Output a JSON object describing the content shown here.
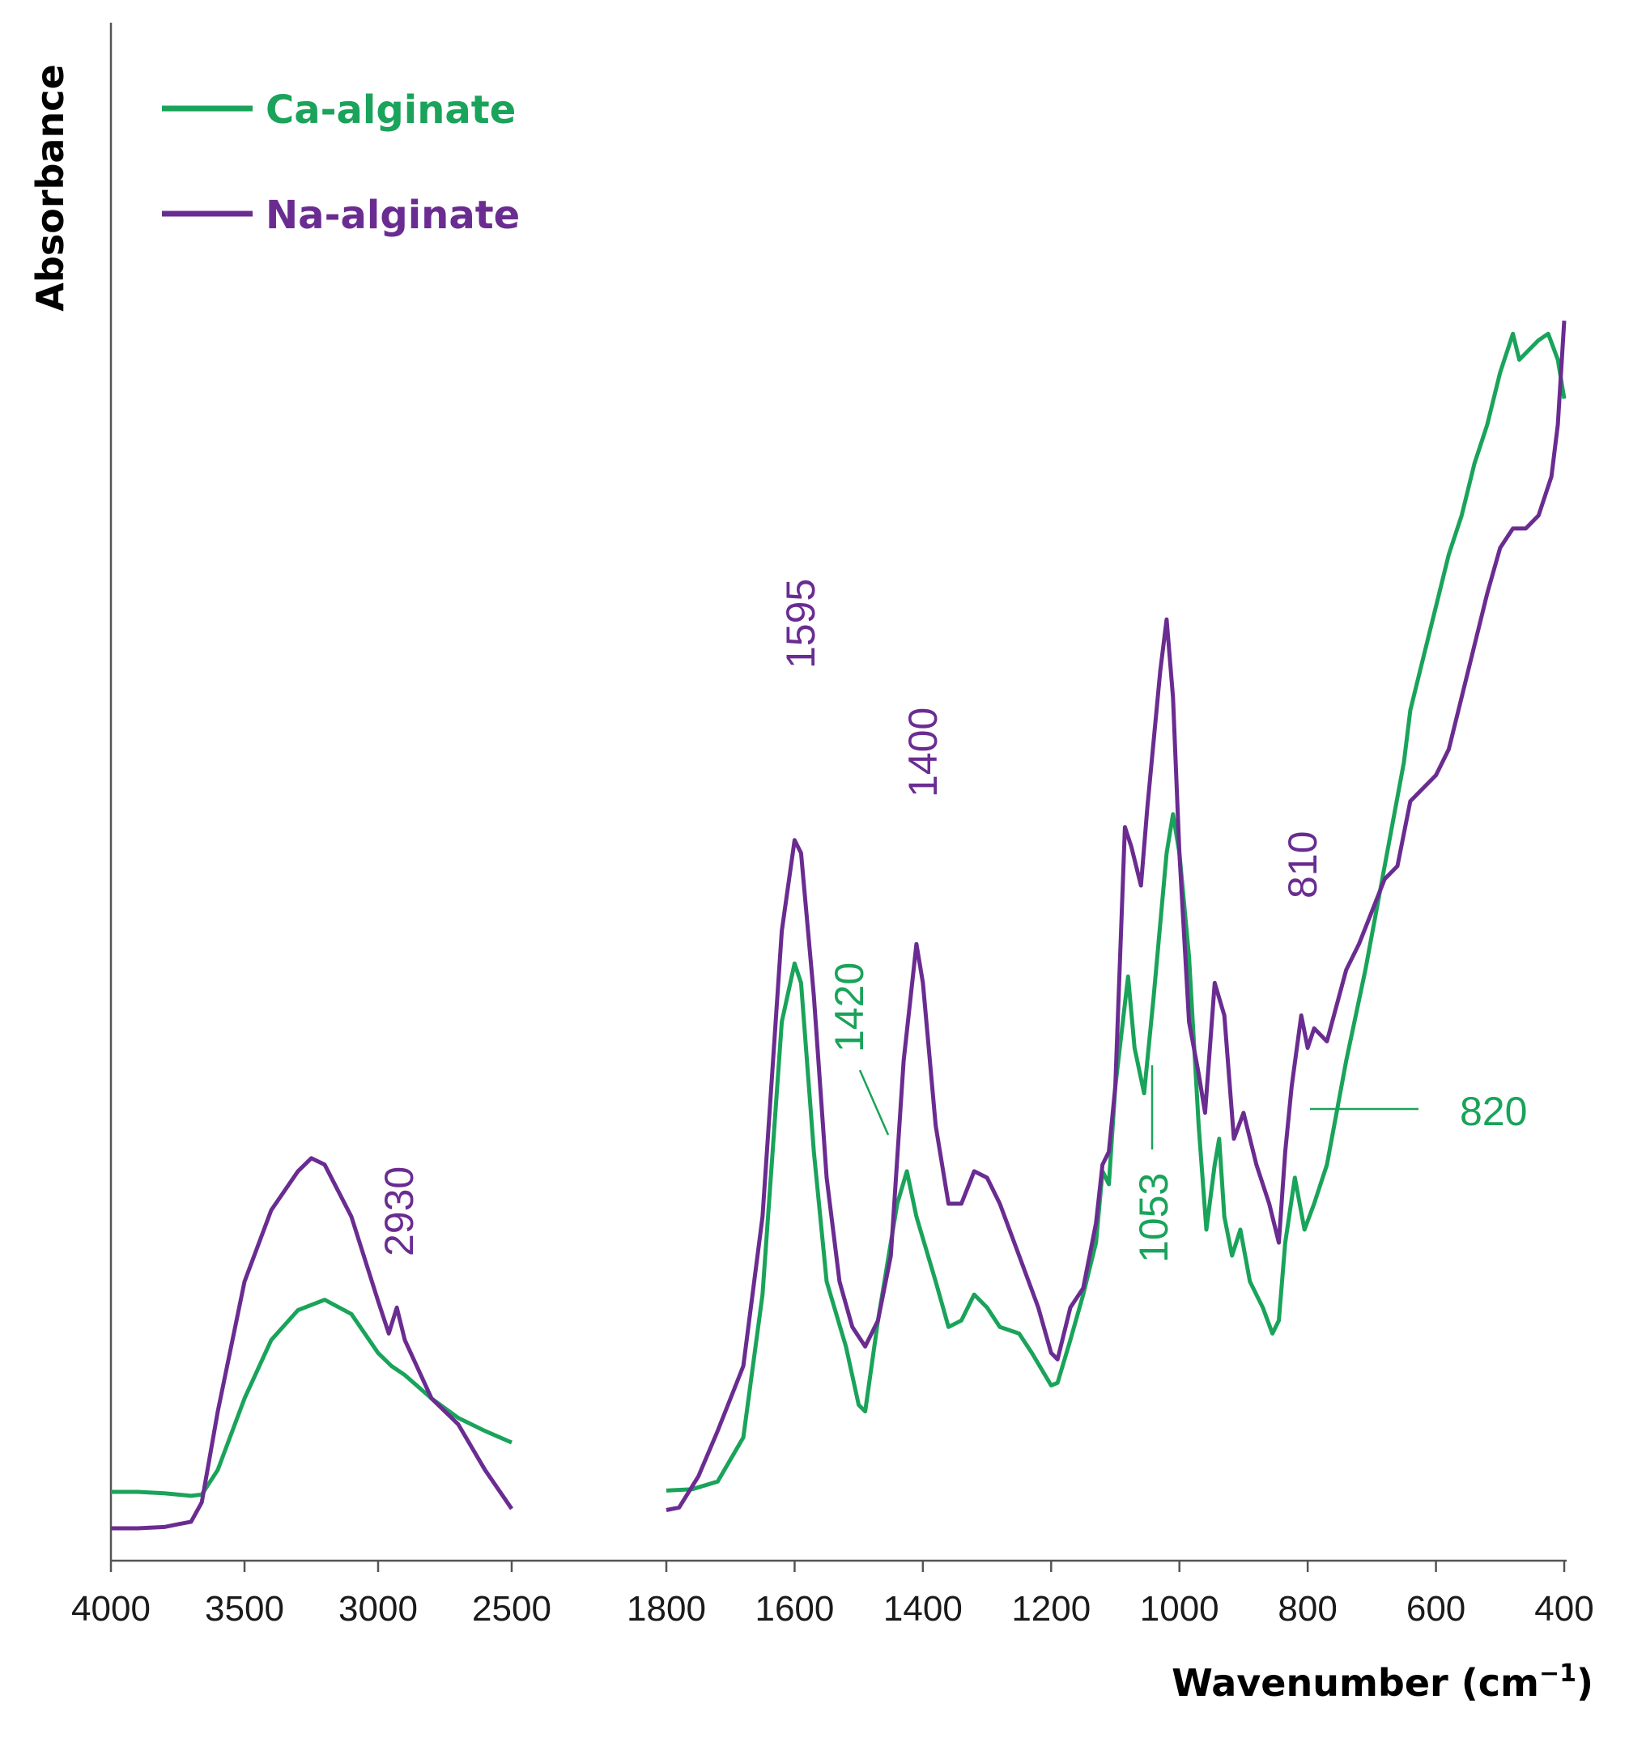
{
  "chart_data": {
    "type": "line",
    "xlabel_main": "Wavenumber (cm",
    "xlabel_sup": "−1",
    "xlabel_end": ")",
    "ylabel": "Absorbance",
    "y_units": "arbitrary absorbance (0 = baseline, 100 = max)",
    "colors": {
      "ca": "#1aa35a",
      "na": "#6a2c91",
      "axis": "#555555"
    },
    "panels": [
      {
        "xlim": [
          4000,
          2500
        ],
        "ticks": [
          "4000",
          "3500",
          "3000",
          "2500"
        ]
      },
      {
        "xlim": [
          1800,
          400
        ],
        "ticks": [
          "1800",
          "1600",
          "1400",
          "1200",
          "1000",
          "800",
          "600",
          "400"
        ]
      }
    ],
    "legend": [
      {
        "key": "ca",
        "label": "Ca-alginate"
      },
      {
        "key": "na",
        "label": "Na-alginate"
      }
    ],
    "series": [
      {
        "name": "Ca-alginate",
        "key": "ca",
        "panel1": [
          [
            4000,
            3.8
          ],
          [
            3900,
            3.8
          ],
          [
            3800,
            3.7
          ],
          [
            3700,
            3.5
          ],
          [
            3660,
            3.6
          ],
          [
            3600,
            5.5
          ],
          [
            3500,
            11
          ],
          [
            3400,
            15.5
          ],
          [
            3300,
            17.8
          ],
          [
            3200,
            18.6
          ],
          [
            3100,
            17.5
          ],
          [
            3000,
            14.5
          ],
          [
            2950,
            13.5
          ],
          [
            2900,
            12.8
          ],
          [
            2800,
            11
          ],
          [
            2700,
            9.5
          ],
          [
            2600,
            8.5
          ],
          [
            2500,
            7.6
          ]
        ],
        "panel2": [
          [
            1800,
            3.9
          ],
          [
            1760,
            4
          ],
          [
            1720,
            4.6
          ],
          [
            1680,
            8
          ],
          [
            1650,
            19
          ],
          [
            1620,
            40
          ],
          [
            1600,
            44.5
          ],
          [
            1590,
            43
          ],
          [
            1570,
            30
          ],
          [
            1550,
            20
          ],
          [
            1520,
            15
          ],
          [
            1500,
            10.5
          ],
          [
            1490,
            10
          ],
          [
            1470,
            17
          ],
          [
            1440,
            26
          ],
          [
            1425,
            28.5
          ],
          [
            1410,
            25
          ],
          [
            1380,
            20
          ],
          [
            1360,
            16.5
          ],
          [
            1340,
            17
          ],
          [
            1320,
            19
          ],
          [
            1300,
            18
          ],
          [
            1280,
            16.5
          ],
          [
            1250,
            16
          ],
          [
            1230,
            14.5
          ],
          [
            1200,
            12
          ],
          [
            1190,
            12.2
          ],
          [
            1170,
            15.5
          ],
          [
            1150,
            19
          ],
          [
            1130,
            23
          ],
          [
            1120,
            28.5
          ],
          [
            1110,
            27.5
          ],
          [
            1100,
            35
          ],
          [
            1080,
            43.5
          ],
          [
            1070,
            38
          ],
          [
            1055,
            34.5
          ],
          [
            1040,
            42
          ],
          [
            1020,
            53
          ],
          [
            1010,
            56
          ],
          [
            1000,
            53
          ],
          [
            985,
            45
          ],
          [
            970,
            32
          ],
          [
            958,
            24
          ],
          [
            945,
            29
          ],
          [
            938,
            31
          ],
          [
            930,
            25
          ],
          [
            918,
            22
          ],
          [
            905,
            24
          ],
          [
            890,
            20
          ],
          [
            870,
            18
          ],
          [
            855,
            16
          ],
          [
            845,
            17
          ],
          [
            835,
            23
          ],
          [
            820,
            28
          ],
          [
            805,
            24
          ],
          [
            790,
            26
          ],
          [
            770,
            29
          ],
          [
            740,
            37
          ],
          [
            710,
            44
          ],
          [
            680,
            52
          ],
          [
            650,
            60
          ],
          [
            640,
            64
          ],
          [
            620,
            68
          ],
          [
            600,
            72
          ],
          [
            580,
            76
          ],
          [
            560,
            79
          ],
          [
            540,
            83
          ],
          [
            520,
            86
          ],
          [
            500,
            90
          ],
          [
            480,
            93
          ],
          [
            470,
            91
          ],
          [
            450,
            92
          ],
          [
            440,
            92.5
          ],
          [
            425,
            93
          ],
          [
            410,
            91
          ],
          [
            400,
            88
          ]
        ]
      },
      {
        "name": "Na-alginate",
        "key": "na",
        "panel1": [
          [
            4000,
            1
          ],
          [
            3900,
            1
          ],
          [
            3800,
            1.1
          ],
          [
            3750,
            1.3
          ],
          [
            3700,
            1.5
          ],
          [
            3660,
            3
          ],
          [
            3600,
            10
          ],
          [
            3500,
            20
          ],
          [
            3400,
            25.5
          ],
          [
            3300,
            28.5
          ],
          [
            3250,
            29.5
          ],
          [
            3200,
            29
          ],
          [
            3100,
            25
          ],
          [
            3000,
            18.5
          ],
          [
            2960,
            16
          ],
          [
            2930,
            18
          ],
          [
            2900,
            15.5
          ],
          [
            2800,
            11
          ],
          [
            2700,
            9
          ],
          [
            2600,
            5.5
          ],
          [
            2500,
            2.5
          ]
        ],
        "panel2": [
          [
            1800,
            2.4
          ],
          [
            1780,
            2.6
          ],
          [
            1750,
            5
          ],
          [
            1720,
            8.5
          ],
          [
            1680,
            13.5
          ],
          [
            1650,
            25
          ],
          [
            1620,
            47
          ],
          [
            1600,
            54
          ],
          [
            1590,
            53
          ],
          [
            1570,
            42
          ],
          [
            1550,
            28
          ],
          [
            1530,
            20
          ],
          [
            1510,
            16.5
          ],
          [
            1490,
            15
          ],
          [
            1470,
            17
          ],
          [
            1450,
            22
          ],
          [
            1430,
            37
          ],
          [
            1410,
            46
          ],
          [
            1400,
            43
          ],
          [
            1380,
            32
          ],
          [
            1360,
            26
          ],
          [
            1340,
            26
          ],
          [
            1320,
            28.5
          ],
          [
            1300,
            28
          ],
          [
            1280,
            26
          ],
          [
            1250,
            22
          ],
          [
            1220,
            18
          ],
          [
            1200,
            14.5
          ],
          [
            1190,
            14
          ],
          [
            1170,
            18
          ],
          [
            1150,
            19.5
          ],
          [
            1130,
            24.5
          ],
          [
            1120,
            29
          ],
          [
            1110,
            30
          ],
          [
            1100,
            35
          ],
          [
            1085,
            55
          ],
          [
            1075,
            53.5
          ],
          [
            1060,
            50.5
          ],
          [
            1050,
            56.5
          ],
          [
            1030,
            67
          ],
          [
            1020,
            71
          ],
          [
            1010,
            65
          ],
          [
            1000,
            53
          ],
          [
            985,
            40
          ],
          [
            970,
            36
          ],
          [
            960,
            33
          ],
          [
            945,
            43
          ],
          [
            930,
            40.5
          ],
          [
            915,
            31
          ],
          [
            900,
            33
          ],
          [
            880,
            29
          ],
          [
            860,
            26
          ],
          [
            845,
            23
          ],
          [
            835,
            30
          ],
          [
            825,
            35
          ],
          [
            810,
            40.5
          ],
          [
            800,
            38
          ],
          [
            790,
            39.5
          ],
          [
            770,
            38.5
          ],
          [
            740,
            44
          ],
          [
            720,
            46
          ],
          [
            700,
            48.5
          ],
          [
            680,
            51
          ],
          [
            660,
            52
          ],
          [
            640,
            57
          ],
          [
            620,
            58
          ],
          [
            600,
            59
          ],
          [
            580,
            61
          ],
          [
            560,
            65
          ],
          [
            540,
            69
          ],
          [
            520,
            73
          ],
          [
            500,
            76.5
          ],
          [
            480,
            78
          ],
          [
            460,
            78
          ],
          [
            440,
            79
          ],
          [
            420,
            82
          ],
          [
            410,
            86
          ],
          [
            400,
            94
          ]
        ]
      }
    ],
    "annotations": [
      {
        "text": "1595",
        "series": "na"
      },
      {
        "text": "1400",
        "series": "na"
      },
      {
        "text": "1420",
        "series": "ca"
      },
      {
        "text": "2930",
        "series": "na"
      },
      {
        "text": "810",
        "series": "na"
      },
      {
        "text": "1053",
        "series": "ca"
      },
      {
        "text": "820",
        "series": "ca"
      }
    ]
  }
}
